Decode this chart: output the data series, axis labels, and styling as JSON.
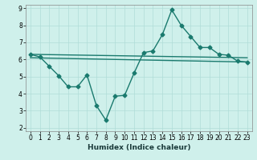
{
  "xlabel": "Humidex (Indice chaleur)",
  "xlim": [
    -0.5,
    23.5
  ],
  "ylim": [
    1.8,
    9.2
  ],
  "yticks": [
    2,
    3,
    4,
    5,
    6,
    7,
    8,
    9
  ],
  "xticks": [
    0,
    1,
    2,
    3,
    4,
    5,
    6,
    7,
    8,
    9,
    10,
    11,
    12,
    13,
    14,
    15,
    16,
    17,
    18,
    19,
    20,
    21,
    22,
    23
  ],
  "bg_color": "#cff0eb",
  "grid_color": "#b0ddd8",
  "line_color": "#1a7a6e",
  "jagged_x": [
    0,
    1,
    2,
    3,
    4,
    5,
    6,
    7,
    8,
    9,
    10,
    11,
    12,
    13,
    14,
    15,
    16,
    17,
    18,
    19,
    20,
    21,
    22,
    23
  ],
  "jagged_y": [
    6.3,
    6.15,
    5.6,
    5.05,
    4.4,
    4.4,
    5.1,
    3.3,
    2.45,
    3.85,
    3.9,
    5.2,
    6.4,
    6.5,
    7.45,
    8.9,
    8.0,
    7.35,
    6.7,
    6.7,
    6.3,
    6.25,
    5.9,
    5.85
  ],
  "line1_x": [
    0,
    23
  ],
  "line1_y": [
    6.3,
    6.1
  ],
  "line2_x": [
    0,
    23
  ],
  "line2_y": [
    6.1,
    5.85
  ]
}
